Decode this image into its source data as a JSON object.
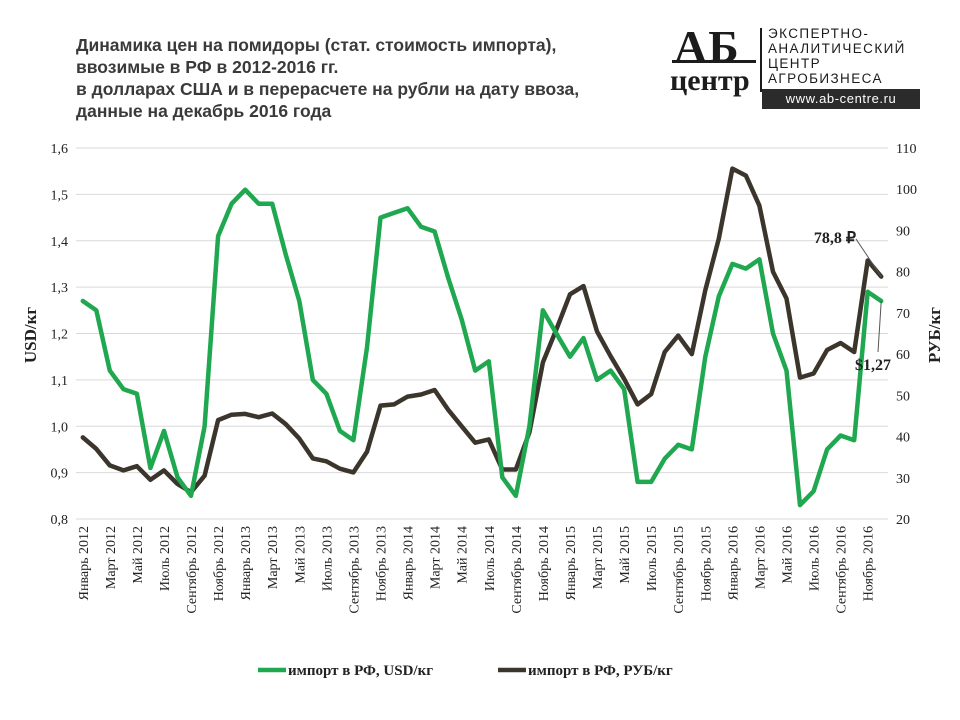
{
  "header": {
    "title_lines": [
      "Динамика цен на помидоры (стат. стоимость импорта),",
      "ввозимые в РФ в 2012-2016 гг.",
      "в долларах США и в перерасчете на рубли на дату ввоза,",
      "данные на декабрь 2016 года"
    ]
  },
  "logo": {
    "mark_top": "АБ",
    "mark_bottom": "центр",
    "text_lines": [
      "ЭКСПЕРТНО-",
      "АНАЛИТИЧЕСКИЙ",
      "ЦЕНТР",
      "АГРОБИЗНЕСА"
    ],
    "url": "www.ab-centre.ru"
  },
  "colors": {
    "usd": "#1fa84f",
    "rub": "#3b352c",
    "grid": "#d9d9d9"
  },
  "chart_data": {
    "type": "line",
    "title": "",
    "ylabel_left": "USD/кг",
    "ylabel_right": "РУБ/кг",
    "ylim_left": [
      0.8,
      1.6
    ],
    "ylim_right": [
      20,
      110
    ],
    "yticks_left": [
      "0,8",
      "0,9",
      "1,0",
      "1,1",
      "1,2",
      "1,3",
      "1,4",
      "1,5",
      "1,6"
    ],
    "yticks_right": [
      "20",
      "30",
      "40",
      "50",
      "60",
      "70",
      "80",
      "90",
      "100",
      "110"
    ],
    "grid": true,
    "legend_position": "bottom",
    "x_tick_labels": [
      "Январь 2012",
      "Март 2012",
      "Май 2012",
      "Июль 2012",
      "Сентябрь 2012",
      "Ноябрь 2012",
      "Январь 2013",
      "Март 2013",
      "Май 2013",
      "Июль 2013",
      "Сентябрь 2013",
      "Ноябрь 2013",
      "Январь 2014",
      "Март 2014",
      "Май 2014",
      "Июль 2014",
      "Сентябрь 2014",
      "Ноябрь 2014",
      "Январь 2015",
      "Март 2015",
      "Май 2015",
      "Июль 2015",
      "Сентябрь 2015",
      "Ноябрь 2015",
      "Январь 2016",
      "Март 2016",
      "Май 2016",
      "Июль 2016",
      "Сентябрь 2016",
      "Ноябрь 2016"
    ],
    "series": [
      {
        "name": "импорт в РФ, USD/кг",
        "axis": "left",
        "color": "#1fa84f",
        "values": [
          1.27,
          1.25,
          1.12,
          1.08,
          1.07,
          0.91,
          0.99,
          0.89,
          0.85,
          1.0,
          1.41,
          1.48,
          1.51,
          1.48,
          1.48,
          1.37,
          1.27,
          1.1,
          1.07,
          0.99,
          0.97,
          1.17,
          1.45,
          1.46,
          1.47,
          1.43,
          1.42,
          1.32,
          1.23,
          1.12,
          1.14,
          0.89,
          0.85,
          1.0,
          1.25,
          1.2,
          1.15,
          1.19,
          1.1,
          1.12,
          1.08,
          0.88,
          0.88,
          0.93,
          0.96,
          0.95,
          1.15,
          1.28,
          1.35,
          1.34,
          1.36,
          1.2,
          1.12,
          0.83,
          0.86,
          0.95,
          0.98,
          0.97,
          1.29,
          1.27
        ]
      },
      {
        "name": "импорт в РФ, РУБ/кг",
        "axis": "right",
        "color": "#3b352c",
        "values": [
          39.8,
          37.0,
          33.0,
          31.8,
          32.8,
          29.5,
          31.8,
          28.5,
          26.5,
          30.5,
          44.0,
          45.3,
          45.5,
          44.7,
          45.6,
          43.0,
          39.5,
          34.7,
          34.0,
          32.2,
          31.3,
          36.3,
          47.5,
          47.8,
          49.7,
          50.2,
          51.3,
          46.5,
          42.5,
          38.5,
          39.3,
          32.0,
          32.0,
          41.0,
          58.0,
          66.0,
          74.5,
          76.5,
          65.5,
          59.5,
          54.0,
          47.8,
          50.3,
          60.5,
          64.5,
          60.0,
          75.5,
          88.0,
          105.0,
          103.3,
          96.0,
          80.0,
          73.5,
          54.3,
          55.3,
          61.0,
          62.7,
          60.5,
          82.7,
          78.8
        ]
      }
    ],
    "annotations": [
      "78,8 ₽",
      "$1,27"
    ]
  }
}
